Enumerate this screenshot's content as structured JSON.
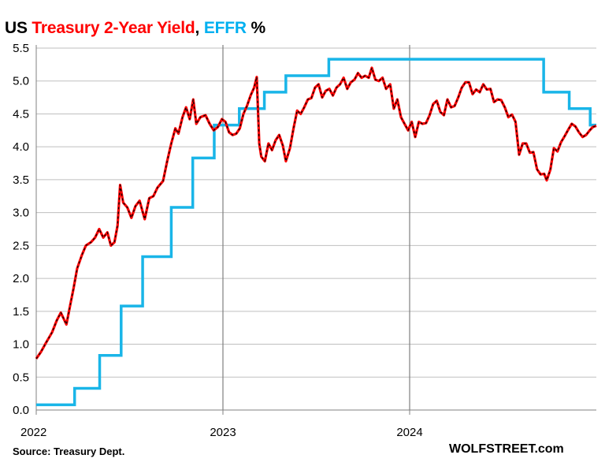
{
  "title": {
    "part1": "US ",
    "part2": "Treasury 2-Year Yield",
    "part3": ", ",
    "part4": "EFFR",
    "part5": " %"
  },
  "footer": {
    "source": "Source: Treasury Dept.",
    "brand": "WOLFSTREET.com"
  },
  "colors": {
    "yield": "#ff0000",
    "yield_dash": "#000000",
    "effr": "#19b5e8",
    "grid": "#bfbfbf",
    "axis": "#808080",
    "year_line": "#7f7f7f"
  },
  "chart_data": {
    "type": "line",
    "x_type": "date",
    "xlim": [
      "2022-01-01",
      "2024-12-31"
    ],
    "ylim": [
      0,
      5.5
    ],
    "y_ticks": [
      "0.0",
      "0.5",
      "1.0",
      "1.5",
      "2.0",
      "2.5",
      "3.0",
      "3.5",
      "4.0",
      "4.5",
      "5.0",
      "5.5"
    ],
    "x_ticks": [
      {
        "label": "2022",
        "date": "2022-01-01"
      },
      {
        "label": "2023",
        "date": "2023-01-01"
      },
      {
        "label": "2024",
        "date": "2024-01-01"
      }
    ],
    "grid": "horizontal",
    "series": [
      {
        "name": "Treasury 2-Year Yield",
        "style": "red line with black dashes",
        "points": [
          [
            "2022-01-01",
            0.78
          ],
          [
            "2022-01-10",
            0.88
          ],
          [
            "2022-01-20",
            1.02
          ],
          [
            "2022-02-01",
            1.18
          ],
          [
            "2022-02-10",
            1.36
          ],
          [
            "2022-02-18",
            1.48
          ],
          [
            "2022-03-01",
            1.3
          ],
          [
            "2022-03-08",
            1.58
          ],
          [
            "2022-03-15",
            1.85
          ],
          [
            "2022-03-22",
            2.15
          ],
          [
            "2022-03-31",
            2.35
          ],
          [
            "2022-04-08",
            2.5
          ],
          [
            "2022-04-18",
            2.55
          ],
          [
            "2022-04-26",
            2.62
          ],
          [
            "2022-05-04",
            2.75
          ],
          [
            "2022-05-12",
            2.62
          ],
          [
            "2022-05-20",
            2.7
          ],
          [
            "2022-05-27",
            2.5
          ],
          [
            "2022-06-03",
            2.55
          ],
          [
            "2022-06-09",
            2.8
          ],
          [
            "2022-06-14",
            3.42
          ],
          [
            "2022-06-20",
            3.15
          ],
          [
            "2022-06-28",
            3.08
          ],
          [
            "2022-07-06",
            2.92
          ],
          [
            "2022-07-14",
            3.1
          ],
          [
            "2022-07-22",
            3.18
          ],
          [
            "2022-08-01",
            2.9
          ],
          [
            "2022-08-10",
            3.22
          ],
          [
            "2022-08-18",
            3.25
          ],
          [
            "2022-08-26",
            3.38
          ],
          [
            "2022-09-06",
            3.48
          ],
          [
            "2022-09-14",
            3.78
          ],
          [
            "2022-09-22",
            4.05
          ],
          [
            "2022-09-30",
            4.28
          ],
          [
            "2022-10-06",
            4.2
          ],
          [
            "2022-10-14",
            4.45
          ],
          [
            "2022-10-21",
            4.6
          ],
          [
            "2022-10-28",
            4.42
          ],
          [
            "2022-11-04",
            4.72
          ],
          [
            "2022-11-10",
            4.35
          ],
          [
            "2022-11-18",
            4.45
          ],
          [
            "2022-11-28",
            4.48
          ],
          [
            "2022-12-06",
            4.35
          ],
          [
            "2022-12-14",
            4.25
          ],
          [
            "2022-12-22",
            4.3
          ],
          [
            "2022-12-30",
            4.42
          ],
          [
            "2023-01-06",
            4.38
          ],
          [
            "2023-01-13",
            4.22
          ],
          [
            "2023-01-20",
            4.18
          ],
          [
            "2023-01-27",
            4.2
          ],
          [
            "2023-02-03",
            4.28
          ],
          [
            "2023-02-10",
            4.5
          ],
          [
            "2023-02-17",
            4.62
          ],
          [
            "2023-02-24",
            4.78
          ],
          [
            "2023-03-03",
            4.9
          ],
          [
            "2023-03-08",
            5.06
          ],
          [
            "2023-03-13",
            4.05
          ],
          [
            "2023-03-17",
            3.85
          ],
          [
            "2023-03-24",
            3.78
          ],
          [
            "2023-03-31",
            4.05
          ],
          [
            "2023-04-07",
            3.95
          ],
          [
            "2023-04-14",
            4.1
          ],
          [
            "2023-04-21",
            4.18
          ],
          [
            "2023-04-28",
            4.02
          ],
          [
            "2023-05-04",
            3.78
          ],
          [
            "2023-05-12",
            3.98
          ],
          [
            "2023-05-19",
            4.28
          ],
          [
            "2023-05-26",
            4.55
          ],
          [
            "2023-06-02",
            4.5
          ],
          [
            "2023-06-09",
            4.6
          ],
          [
            "2023-06-16",
            4.72
          ],
          [
            "2023-06-23",
            4.74
          ],
          [
            "2023-06-30",
            4.9
          ],
          [
            "2023-07-07",
            4.95
          ],
          [
            "2023-07-14",
            4.75
          ],
          [
            "2023-07-21",
            4.85
          ],
          [
            "2023-07-28",
            4.88
          ],
          [
            "2023-08-04",
            4.78
          ],
          [
            "2023-08-11",
            4.9
          ],
          [
            "2023-08-18",
            4.95
          ],
          [
            "2023-08-25",
            5.05
          ],
          [
            "2023-09-01",
            4.88
          ],
          [
            "2023-09-08",
            4.98
          ],
          [
            "2023-09-15",
            5.02
          ],
          [
            "2023-09-22",
            5.12
          ],
          [
            "2023-09-29",
            5.05
          ],
          [
            "2023-10-06",
            5.08
          ],
          [
            "2023-10-13",
            5.05
          ],
          [
            "2023-10-19",
            5.2
          ],
          [
            "2023-10-26",
            5.02
          ],
          [
            "2023-11-02",
            5.0
          ],
          [
            "2023-11-09",
            5.05
          ],
          [
            "2023-11-16",
            4.88
          ],
          [
            "2023-11-24",
            4.95
          ],
          [
            "2023-12-01",
            4.58
          ],
          [
            "2023-12-08",
            4.72
          ],
          [
            "2023-12-15",
            4.45
          ],
          [
            "2023-12-22",
            4.35
          ],
          [
            "2023-12-29",
            4.25
          ],
          [
            "2024-01-05",
            4.38
          ],
          [
            "2024-01-12",
            4.15
          ],
          [
            "2024-01-19",
            4.38
          ],
          [
            "2024-01-26",
            4.35
          ],
          [
            "2024-02-02",
            4.36
          ],
          [
            "2024-02-09",
            4.48
          ],
          [
            "2024-02-16",
            4.65
          ],
          [
            "2024-02-23",
            4.7
          ],
          [
            "2024-03-01",
            4.53
          ],
          [
            "2024-03-08",
            4.48
          ],
          [
            "2024-03-15",
            4.72
          ],
          [
            "2024-03-22",
            4.6
          ],
          [
            "2024-03-29",
            4.62
          ],
          [
            "2024-04-05",
            4.75
          ],
          [
            "2024-04-12",
            4.9
          ],
          [
            "2024-04-19",
            4.98
          ],
          [
            "2024-04-26",
            4.98
          ],
          [
            "2024-05-03",
            4.8
          ],
          [
            "2024-05-10",
            4.87
          ],
          [
            "2024-05-17",
            4.83
          ],
          [
            "2024-05-24",
            4.95
          ],
          [
            "2024-05-31",
            4.87
          ],
          [
            "2024-06-07",
            4.88
          ],
          [
            "2024-06-14",
            4.68
          ],
          [
            "2024-06-21",
            4.72
          ],
          [
            "2024-06-28",
            4.71
          ],
          [
            "2024-07-05",
            4.6
          ],
          [
            "2024-07-12",
            4.45
          ],
          [
            "2024-07-19",
            4.49
          ],
          [
            "2024-07-26",
            4.38
          ],
          [
            "2024-08-02",
            3.88
          ],
          [
            "2024-08-09",
            4.05
          ],
          [
            "2024-08-16",
            4.05
          ],
          [
            "2024-08-23",
            3.91
          ],
          [
            "2024-08-30",
            3.92
          ],
          [
            "2024-09-06",
            3.66
          ],
          [
            "2024-09-13",
            3.58
          ],
          [
            "2024-09-20",
            3.59
          ],
          [
            "2024-09-25",
            3.49
          ],
          [
            "2024-10-02",
            3.65
          ],
          [
            "2024-10-09",
            3.98
          ],
          [
            "2024-10-16",
            3.93
          ],
          [
            "2024-10-23",
            4.07
          ],
          [
            "2024-10-30",
            4.16
          ],
          [
            "2024-11-06",
            4.26
          ],
          [
            "2024-11-13",
            4.35
          ],
          [
            "2024-11-20",
            4.31
          ],
          [
            "2024-11-27",
            4.22
          ],
          [
            "2024-12-04",
            4.15
          ],
          [
            "2024-12-11",
            4.18
          ],
          [
            "2024-12-18",
            4.25
          ],
          [
            "2024-12-24",
            4.3
          ],
          [
            "2024-12-31",
            4.32
          ]
        ]
      },
      {
        "name": "EFFR",
        "style": "step",
        "steps": [
          [
            "2022-01-01",
            0.08
          ],
          [
            "2022-03-17",
            0.33
          ],
          [
            "2022-05-05",
            0.83
          ],
          [
            "2022-06-16",
            1.58
          ],
          [
            "2022-07-28",
            2.33
          ],
          [
            "2022-09-22",
            3.08
          ],
          [
            "2022-11-03",
            3.83
          ],
          [
            "2022-12-15",
            4.33
          ],
          [
            "2023-02-02",
            4.58
          ],
          [
            "2023-03-23",
            4.83
          ],
          [
            "2023-05-04",
            5.08
          ],
          [
            "2023-07-27",
            5.33
          ],
          [
            "2024-09-19",
            4.83
          ],
          [
            "2024-11-08",
            4.58
          ],
          [
            "2024-12-19",
            4.33
          ]
        ],
        "end": "2024-12-31"
      }
    ]
  }
}
